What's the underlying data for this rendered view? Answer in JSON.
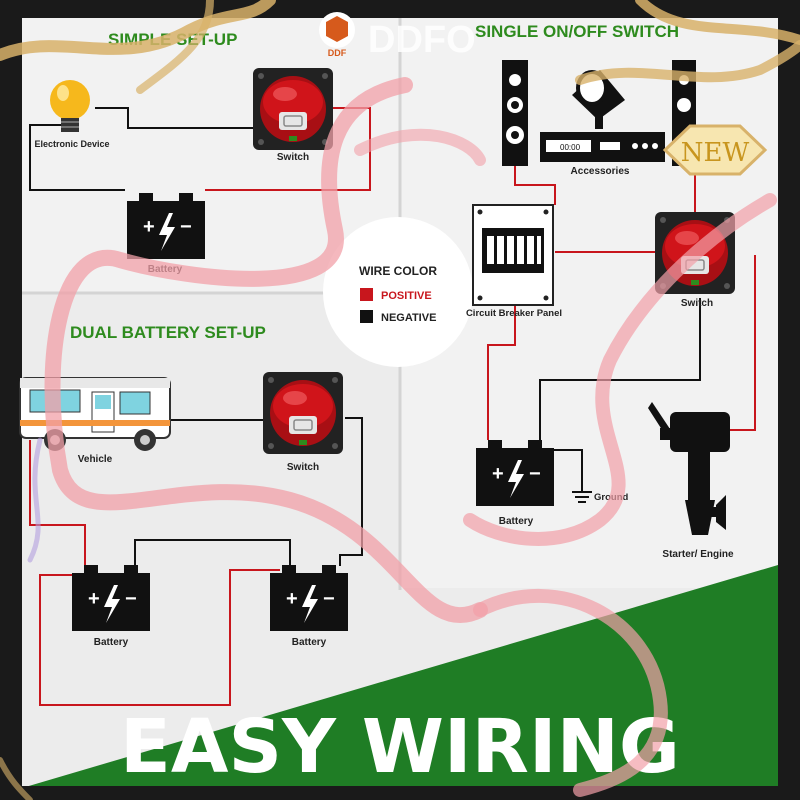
{
  "brand": {
    "logo_text": "DDF",
    "name": "DDFO"
  },
  "badge": "NEW",
  "sections": {
    "simple": {
      "title": "SIMPLE SET-UP",
      "device": "Electronic Device",
      "switch": "Switch",
      "battery": "Battery"
    },
    "dual": {
      "title": "DUAL BATTERY SET-UP",
      "vehicle": "Vehicle",
      "switch": "Switch",
      "battery_left": "Battery",
      "battery_right": "Battery"
    },
    "single": {
      "title": "SINGLE ON/OFF SWITCH",
      "accessories": "Accessories",
      "breaker": "Circuit Breaker Panel",
      "switch": "Switch",
      "battery": "Battery",
      "ground": "Ground",
      "engine": "Starter/ Engine"
    }
  },
  "legend": {
    "title": "WIRE COLOR",
    "positive": "POSITIVE",
    "negative": "NEGATIVE",
    "positive_color": "#c8161d",
    "negative_color": "#111111"
  },
  "banner": "EASY WIRING",
  "colors": {
    "background": "#ececec",
    "panel": "#f2f2f2",
    "green": "#1f7d25",
    "title_green": "#2e8b1e",
    "switch_red": "#d0141a",
    "ribbon": "#f2a0a8",
    "gold": "#d8b26a",
    "badge_bg": "#f7e6b0"
  }
}
